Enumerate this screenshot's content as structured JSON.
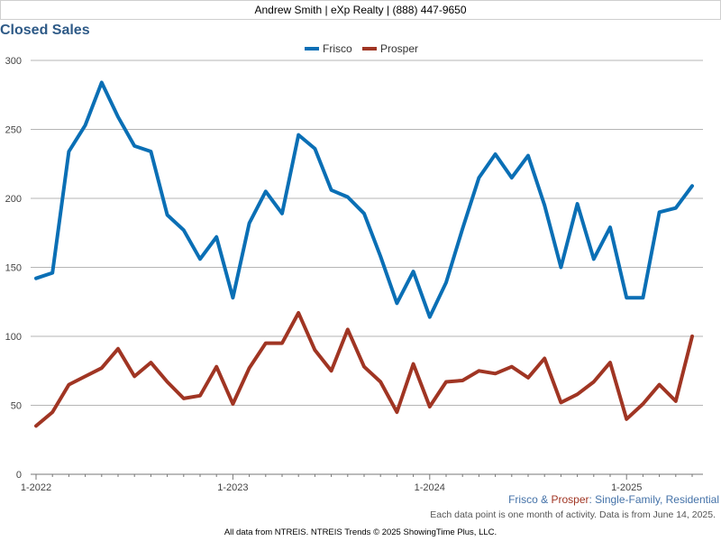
{
  "header": {
    "agent": "Andrew Smith | eXp Realty | (888) 447-9650"
  },
  "chart_title": "Closed Sales",
  "caption": {
    "place1": "Frisco",
    "amp": "&",
    "place2": "Prosper",
    "rest": ": Single-Family, Residential"
  },
  "note": "Each data point is one month of activity. Data is from June 14, 2025.",
  "footer": "All data from NTREIS. NTREIS Trends © 2025 ShowingTime Plus, LLC.",
  "chart_data": {
    "type": "line",
    "title": "Closed Sales",
    "x_start": "2022-01",
    "x_tick_labels": [
      "1-2022",
      "1-2023",
      "1-2024",
      "1-2025"
    ],
    "y_ticks": [
      0,
      50,
      100,
      150,
      200,
      250,
      300
    ],
    "ylim": [
      0,
      300
    ],
    "grid": true,
    "legend_position": "top-center",
    "series": [
      {
        "name": "Frisco",
        "color": "#0a6fb5",
        "values": [
          142,
          146,
          234,
          253,
          284,
          259,
          238,
          234,
          188,
          177,
          156,
          172,
          128,
          182,
          205,
          189,
          246,
          236,
          206,
          201,
          189,
          158,
          124,
          147,
          114,
          139,
          178,
          215,
          232,
          215,
          231,
          195,
          150,
          196,
          156,
          179,
          128,
          128,
          190,
          193,
          209
        ]
      },
      {
        "name": "Prosper",
        "color": "#a03523",
        "values": [
          35,
          45,
          65,
          71,
          77,
          91,
          71,
          81,
          67,
          55,
          57,
          78,
          51,
          77,
          95,
          95,
          117,
          90,
          75,
          105,
          78,
          67,
          45,
          80,
          49,
          67,
          68,
          75,
          73,
          78,
          70,
          84,
          52,
          58,
          67,
          81,
          40,
          51,
          65,
          53,
          100
        ]
      }
    ]
  }
}
